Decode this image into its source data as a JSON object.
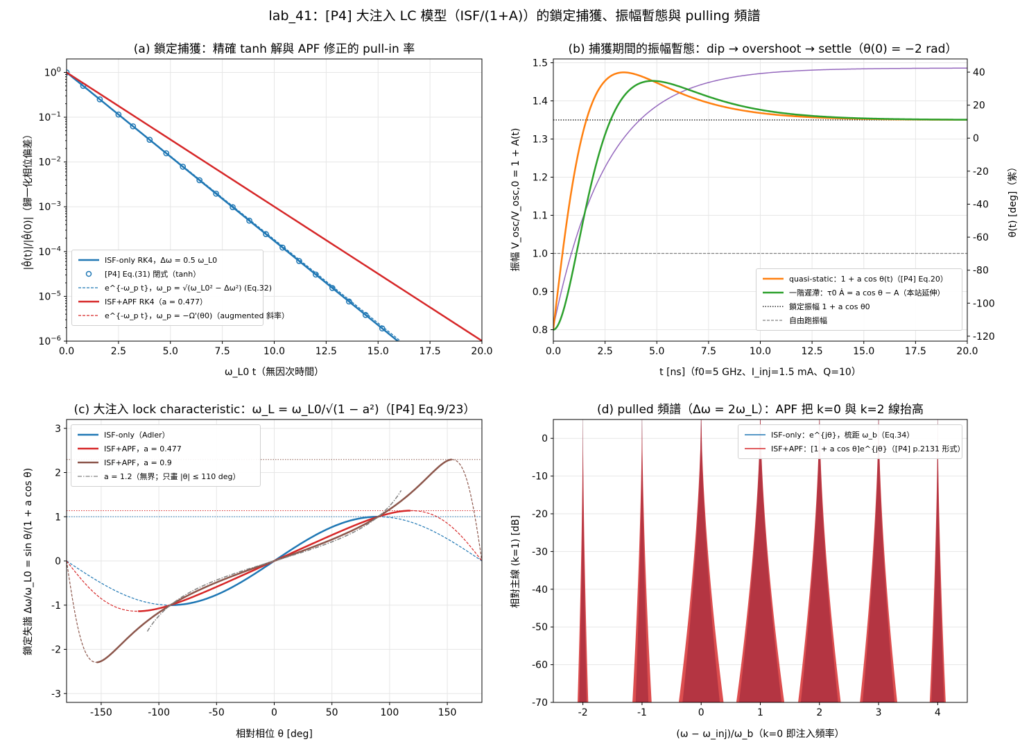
{
  "figure_title": "lab_41：[P4] 大注入 LC 模型（ISF/(1+A)）的鎖定捕獲、振幅暫態與 pulling 頻譜",
  "chart_data": [
    {
      "id": "a",
      "type": "line",
      "title": "(a) 鎖定捕獲：精確 tanh 解與 APF 修正的 pull-in 率",
      "xlabel": "ω_L0 t（無因次時間）",
      "ylabel": "|θ̂(t)|/|θ̂(0)|（歸一化相位偏差）",
      "xlim": [
        0,
        20
      ],
      "ylim": [
        1e-06,
        2
      ],
      "yscale": "log",
      "xticks": [
        "0.0",
        "2.5",
        "5.0",
        "7.5",
        "10.0",
        "12.5",
        "15.0",
        "17.5",
        "20.0"
      ],
      "yticks": [
        "10^0",
        "10^-1",
        "10^-2",
        "10^-3",
        "10^-4",
        "10^-5",
        "10^-6"
      ],
      "grid": true,
      "legend_position": "lower-left",
      "series": [
        {
          "name": "ISF-only RK4，Δω = 0.5 ω_L0",
          "style": "solid",
          "color": "#1f77b4",
          "decay_rate": 0.866,
          "x_range": [
            0,
            16
          ]
        },
        {
          "name": "[P4] Eq.(31) 閉式（tanh）",
          "style": "markers",
          "color": "#1f77b4",
          "decay_rate": 0.866,
          "x": [
            0,
            0.8,
            1.6,
            2.5,
            3.2,
            4.0,
            4.8,
            5.6,
            6.4,
            7.2,
            8.0,
            8.8,
            9.6,
            10.4,
            11.2,
            12.0,
            12.8,
            13.6,
            14.4,
            15.2
          ]
        },
        {
          "name": "e^{-ω_p t}，ω_p = √(ω_L0² − Δω²) (Eq.32)",
          "style": "dashed",
          "color": "#1f77b4",
          "decay_rate": 0.859,
          "x_range": [
            0,
            16.2
          ]
        },
        {
          "name": "ISF+APF RK4（a = 0.477）",
          "style": "solid",
          "color": "#d62728",
          "decay_rate": 0.69,
          "x_range": [
            0,
            20
          ]
        },
        {
          "name": "e^{-ω_p t}，ω_p = −Ω'(θ0)（augmented 斜率）",
          "style": "dashed",
          "color": "#d62728",
          "decay_rate": 0.69,
          "x_range": [
            0,
            20
          ]
        }
      ]
    },
    {
      "id": "b",
      "type": "line",
      "title": "(b) 捕獲期間的振幅暫態：dip → overshoot → settle（θ(0) = −2 rad）",
      "xlabel": "t [ns]（f0=5 GHz、I_inj=1.5 mA、Q=10）",
      "ylabel": "振幅 V_osc/V_osc,0 = 1 + A(t)",
      "y2label": "θ(t) [deg]（紫）",
      "xlim": [
        0,
        20
      ],
      "ylim": [
        0.77,
        1.51
      ],
      "y2lim": [
        -123,
        48
      ],
      "xticks": [
        "0.0",
        "2.5",
        "5.0",
        "7.5",
        "10.0",
        "12.5",
        "15.0",
        "17.5",
        "20.0"
      ],
      "yticks": [
        "0.8",
        "0.9",
        "1.0",
        "1.1",
        "1.2",
        "1.3",
        "1.4",
        "1.5"
      ],
      "y2ticks": [
        "-120",
        "-100",
        "-80",
        "-60",
        "-40",
        "-20",
        "0",
        "20",
        "40"
      ],
      "grid": true,
      "legend_position": "lower-right",
      "series": [
        {
          "name": "quasi-static：1 + a cos θ(t)（[P4] Eq.20）",
          "style": "solid",
          "color": "#ff7f0e"
        },
        {
          "name": "一階遲滯：τ0 Ȧ = a cos θ − A（本站延伸）",
          "style": "solid",
          "color": "#2ca02c"
        },
        {
          "name": "鎖定振幅 1 + a cos θ0",
          "style": "dotted",
          "color": "#000000",
          "value": 1.35
        },
        {
          "name": "自由跑振幅",
          "style": "dashed",
          "color": "#808080",
          "value": 1.0
        },
        {
          "name": "θ(t)",
          "style": "solid",
          "color": "#9467bd",
          "axis": "right",
          "theta_start": -114.6,
          "theta_final": 42.5
        }
      ]
    },
    {
      "id": "c",
      "type": "line",
      "title": "(c) 大注入 lock characteristic：ω_L = ω_L0/√(1 − a²)（[P4] Eq.9/23）",
      "xlabel": "相對相位 θ [deg]",
      "ylabel": "鎖定失諧 Δω/ω_L0 = sin θ/(1 + a cos θ)",
      "xlim": [
        -180,
        180
      ],
      "ylim": [
        -3.2,
        3.2
      ],
      "xticks": [
        "-150",
        "-100",
        "-50",
        "0",
        "50",
        "100",
        "150"
      ],
      "yticks": [
        "-3",
        "-2",
        "-1",
        "0",
        "1",
        "2",
        "3"
      ],
      "grid": true,
      "legend_position": "upper-left",
      "series": [
        {
          "name": "ISF-only（Adler）",
          "style": "solid",
          "color": "#1f77b4",
          "a": 0,
          "peak": 1.0
        },
        {
          "name": "ISF+APF，a = 0.477",
          "style": "solid",
          "color": "#d62728",
          "a": 0.477,
          "peak": 1.138
        },
        {
          "name": "ISF+APF，a = 0.9",
          "style": "solid",
          "color": "#8c564b",
          "a": 0.9,
          "peak": 2.294
        },
        {
          "name": "a = 1.2（無界；只畫 |θ| ≤ 110 deg）",
          "style": "dashdot",
          "color": "#7f7f7f",
          "a": 1.2,
          "theta_limit": 110
        }
      ]
    },
    {
      "id": "d",
      "type": "line",
      "title": "(d) pulled 頻譜（Δω = 2ω_L）：APF 把 k=0 與 k=2 線抬高",
      "xlabel": "(ω − ω_inj)/ω_b（k=0 即注入頻率）",
      "ylabel": "相對主線 (k=1) [dB]",
      "xlim": [
        -2.5,
        4.5
      ],
      "ylim": [
        -70,
        5
      ],
      "xticks": [
        "-2",
        "-1",
        "0",
        "1",
        "2",
        "3",
        "4"
      ],
      "yticks": [
        "0",
        "-10",
        "-20",
        "-30",
        "-40",
        "-50",
        "-60",
        "-70"
      ],
      "grid": true,
      "legend_position": "upper-right",
      "series": [
        {
          "name": "ISF-only：e^{jθ}，梳距 ω_b（Eq.34）",
          "style": "solid",
          "color": "#1f77b4",
          "lines_k": [
            -2,
            -1,
            0,
            1,
            2,
            3,
            4
          ]
        },
        {
          "name": "ISF+APF：[1 + a cos θ]e^{jθ}（[P4] p.2131 形式）",
          "style": "solid",
          "color": "#d62728",
          "lines_k": [
            -2,
            -1,
            0,
            1,
            2,
            3,
            4
          ]
        }
      ]
    }
  ]
}
